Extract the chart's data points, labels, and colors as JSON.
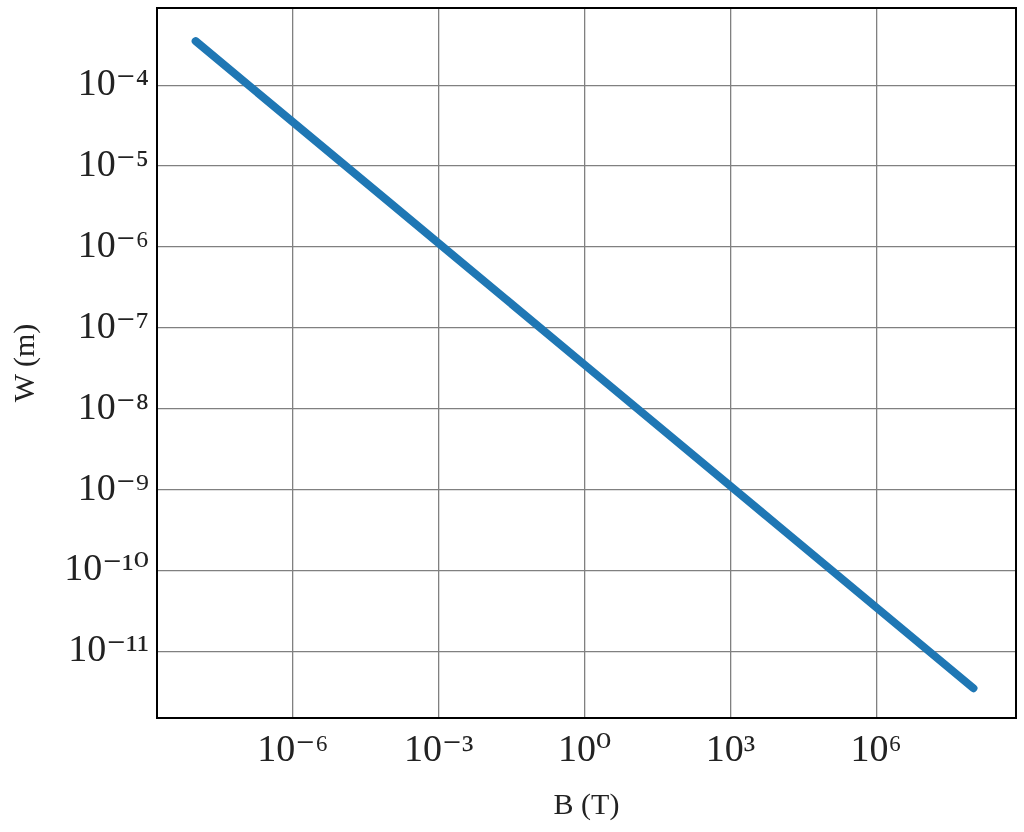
{
  "chart_data": {
    "type": "line",
    "xlabel": "B (T)",
    "ylabel": "W (m)",
    "x": [
      1e-08,
      0.0001,
      1,
      10000.0,
      100000000.0
    ],
    "series": [
      {
        "color": "#1f77b4",
        "values": [
          0.00035,
          3.5e-06,
          3.5e-08,
          3.5e-10,
          3.5e-12
        ]
      }
    ],
    "log": "xy",
    "xlim": [
      1.6e-09,
      750000000.0
    ],
    "ylim": [
      1.5e-12,
      0.0009
    ],
    "xticks": [
      {
        "value": 1e-06,
        "label": "10⁻⁶"
      },
      {
        "value": 0.001,
        "label": "10⁻³"
      },
      {
        "value": 1,
        "label": "10⁰"
      },
      {
        "value": 1000.0,
        "label": "10³"
      },
      {
        "value": 1000000.0,
        "label": "10⁶"
      }
    ],
    "yticks": [
      {
        "value": 0.0001,
        "label": "10⁻⁴"
      },
      {
        "value": 1e-05,
        "label": "10⁻⁵"
      },
      {
        "value": 1e-06,
        "label": "10⁻⁶"
      },
      {
        "value": 1e-07,
        "label": "10⁻⁷"
      },
      {
        "value": 1e-08,
        "label": "10⁻⁸"
      },
      {
        "value": 1e-09,
        "label": "10⁻⁹"
      },
      {
        "value": 1e-10,
        "label": "10⁻¹⁰"
      },
      {
        "value": 1e-11,
        "label": "10⁻¹¹"
      }
    ],
    "grid": true,
    "marker": "none",
    "line_style": "solid"
  }
}
